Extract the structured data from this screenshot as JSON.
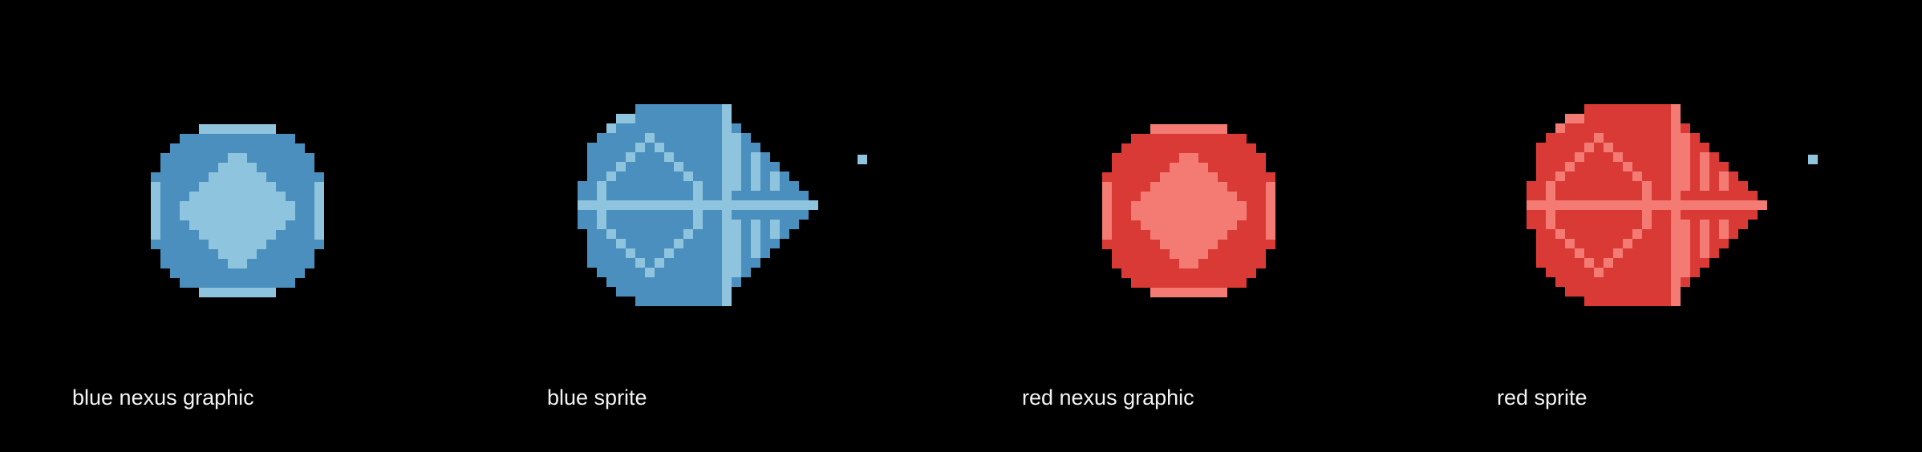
{
  "panels": [
    {
      "label": "blue nexus graphic"
    },
    {
      "label": "blue sprite"
    },
    {
      "label": "red nexus graphic"
    },
    {
      "label": "red sprite"
    }
  ],
  "palette": {
    "background": "#000000",
    "caption_text": "#f2f2f2",
    "blue": {
      "dark": "#4a8fbd",
      "light": "#8ec4dd"
    },
    "red": {
      "dark": "#d93a35",
      "light": "#f47a74"
    }
  }
}
